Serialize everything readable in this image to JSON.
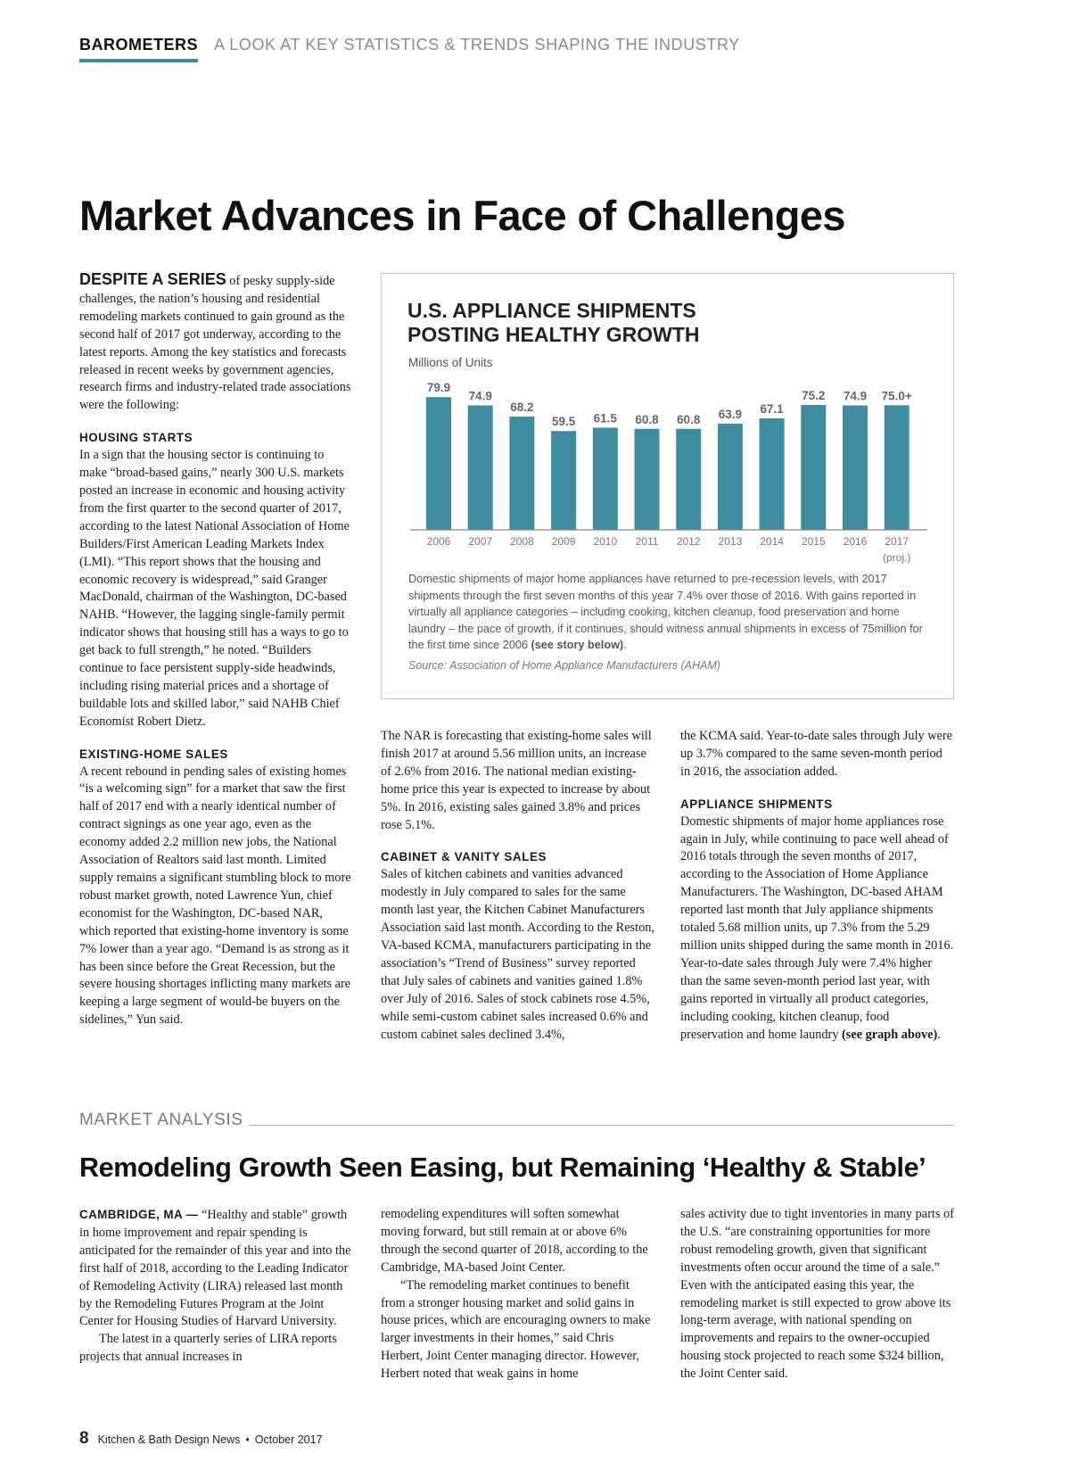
{
  "header": {
    "section": "BAROMETERS",
    "tagline": "A LOOK AT KEY STATISTICS & TRENDS SHAPING THE INDUSTRY"
  },
  "article1": {
    "title": "Market Advances in Face of Challenges",
    "columns": [
      [
        {
          "paragraph": [
            {
              "text": "DESPITE A SERIES",
              "bold": true,
              "lead": true
            },
            {
              "text": " of pesky supply-side challenges, the nation’s housing and residential remodeling markets continued to gain ground as the second half of 2017 got underway, according to the latest reports. Among the key statistics and forecasts released in recent weeks by government agencies, research firms and industry-related trade associations were the following:"
            }
          ]
        },
        {
          "heading": "HOUSING STARTS"
        },
        {
          "paragraph": [
            {
              "text": "In a sign that the housing sector is continuing to make “broad-based gains,” nearly 300 U.S. markets posted an increase in economic and housing activity from the first quarter to the second quarter of 2017, according to the latest National Association of Home Builders/First American Leading Markets Index (LMI). “This report shows that the housing and economic recovery is widespread,” said Granger MacDonald, chairman of the Washington, DC-based NAHB. “However, the lagging single-family permit indicator shows that housing still has a ways to go to get back to full strength,” he noted. “Builders continue to face persistent supply-side headwinds, including rising material prices and a shortage of buildable lots and skilled labor,” said NAHB Chief Economist Robert Dietz."
            }
          ]
        },
        {
          "heading": "EXISTING-HOME SALES"
        },
        {
          "paragraph": [
            {
              "text": "A recent rebound in pending sales of existing homes “is a welcoming sign” for a market that saw the first half of 2017 end with a nearly identical number of contract signings as one year ago, even as the economy added 2.2 million new jobs, the National Association of Realtors said last month. Limited supply remains a significant stumbling block to more robust market growth, noted Lawrence Yun, chief economist for the Washington, DC-based NAR, which reported that existing-home inventory is some 7% lower than a year ago. “Demand is as strong as it has been since before the Great Recession, but the severe housing shortages inflicting many markets are keeping a large segment of would-be buyers on the sidelines,” Yun said."
            }
          ]
        }
      ],
      [
        {
          "paragraph": [
            {
              "text": "The NAR is forecasting that existing-home sales will finish 2017 at around 5.56 million units, an increase of 2.6% from 2016. The national median existing-home price this year is expected to increase by about 5%. In 2016, existing sales gained 3.8% and prices rose 5.1%."
            }
          ]
        },
        {
          "heading": "CABINET & VANITY SALES"
        },
        {
          "paragraph": [
            {
              "text": "Sales of kitchen cabinets and vanities advanced modestly in July compared to sales for the same month last year, the Kitchen Cabinet Manufacturers Association said last month. According to the Reston, VA-based KCMA, manufacturers participating in the association’s “Trend of Business” survey reported that July sales of cabinets and vanities gained 1.8% over July of 2016. Sales of stock cabinets rose 4.5%, while semi-custom cabinet sales increased 0.6% and custom cabinet sales declined 3.4%,"
            }
          ]
        }
      ],
      [
        {
          "paragraph": [
            {
              "text": "the KCMA said. Year-to-date sales through July were up 3.7% compared to the same seven-month period in 2016, the association added."
            }
          ]
        },
        {
          "heading": "APPLIANCE SHIPMENTS"
        },
        {
          "paragraph": [
            {
              "text": "Domestic shipments of major home appliances rose again in July, while continuing to pace well ahead of 2016 totals through the seven months of 2017, according to the Association of Home Appliance Manufacturers. The Washington, DC-based AHAM reported last month that July appliance shipments totaled 5.68 million units, up 7.3% from the 5.29 million units shipped during the same month in 2016. Year-to-date sales through July were 7.4% higher than the same seven-month period last year, with gains reported in virtually all product categories, including cooking, kitchen cleanup, food preservation and home laundry "
            },
            {
              "text": "(see graph above)",
              "bold": true
            },
            {
              "text": "."
            }
          ]
        }
      ]
    ]
  },
  "chart_data": {
    "type": "bar",
    "title": "U.S. APPLIANCE SHIPMENTS POSTING HEALTHY GROWTH",
    "y_label": "Millions of Units",
    "categories": [
      "2006",
      "2007",
      "2008",
      "2009",
      "2010",
      "2011",
      "2012",
      "2013",
      "2014",
      "2015",
      "2016",
      "2017"
    ],
    "category_note": "(proj.)",
    "values": [
      79.9,
      74.9,
      68.2,
      59.5,
      61.5,
      60.8,
      60.8,
      63.9,
      67.1,
      75.2,
      74.9,
      75.0
    ],
    "value_labels": [
      "79.9",
      "74.9",
      "68.2",
      "59.5",
      "61.5",
      "60.8",
      "60.8",
      "63.9",
      "67.1",
      "75.2",
      "74.9",
      "75.0+"
    ],
    "color": "#3f8c9f",
    "ylim": [
      0,
      80
    ],
    "caption": [
      {
        "text": "Domestic shipments of major home appliances have returned to pre-recession levels, with 2017 shipments through the first seven months of this year 7.4% over those of 2016. With gains reported in virtually all appliance categories – including cooking, kitchen cleanup, food preservation and home laundry – the pace of growth, if it continues, should witness annual shipments in excess of 75million for the first time since 2006 "
      },
      {
        "text": "(see story below)",
        "bold": true
      },
      {
        "text": "."
      }
    ],
    "source": "Source: Association of Home Appliance Manufacturers (AHAM)"
  },
  "article2": {
    "section": "MARKET ANALYSIS",
    "title": "Remodeling Growth Seen Easing, but Remaining ‘Healthy & Stable’",
    "columns": [
      [
        {
          "paragraph": [
            {
              "text": "CAMBRIDGE, MA —",
              "bold": true,
              "lead": true
            },
            {
              "text": " “Healthy and stable” growth in home improvement and repair spending is anticipated for the remainder of this year and into the first half of 2018, according to the Leading Indicator of Remodeling Activity (LIRA) released last month by the Remodeling Futures Program at the Joint Center for Housing Studies of Harvard University."
            }
          ]
        },
        {
          "paragraph": [
            {
              "text": "The latest in a quarterly series of LIRA reports projects that annual increases in"
            }
          ],
          "indent": true
        }
      ],
      [
        {
          "paragraph": [
            {
              "text": "remodeling expenditures will soften somewhat moving forward, but still remain at or above 6% through the second quarter of 2018, according to the Cambridge, MA-based Joint Center."
            }
          ]
        },
        {
          "paragraph": [
            {
              "text": "“The remodeling market continues to benefit from a stronger housing market and solid gains in house prices, which are encouraging owners to make larger investments in their homes,” said Chris Herbert, Joint Center managing director. However, Herbert noted that weak gains in home"
            }
          ],
          "indent": true
        }
      ],
      [
        {
          "paragraph": [
            {
              "text": "sales activity due to tight inventories in many parts of the U.S. “are constraining opportunities for more robust remodeling growth, given that significant investments often occur around the time of a sale.” Even with the anticipated easing this year, the remodeling market is still expected to grow above its long-term average, with national spending on improvements and repairs to the owner-occupied housing stock projected to reach some $324 billion, the Joint Center said."
            }
          ]
        }
      ]
    ]
  },
  "footer": {
    "page": "8",
    "publication": "Kitchen & Bath Design News",
    "separator": "•",
    "issue": "October 2017"
  }
}
